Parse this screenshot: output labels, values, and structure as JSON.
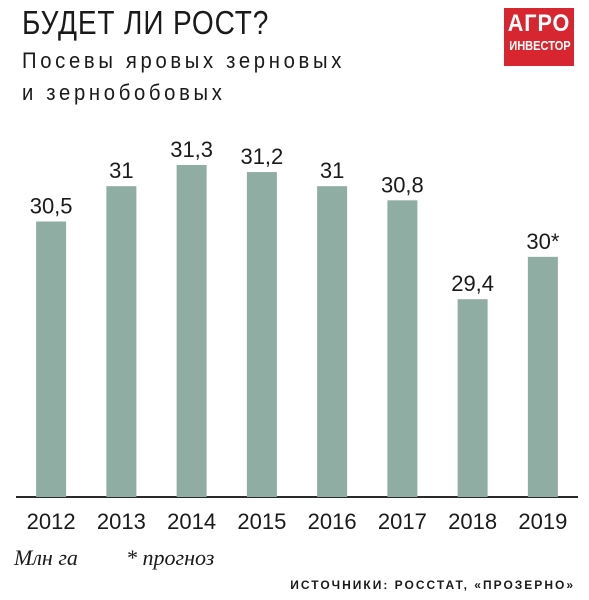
{
  "header": {
    "title": "БУДЕТ ЛИ РОСТ?",
    "subtitle_line1": "Посевы яровых зерновых",
    "subtitle_line2": "и зернобобовых"
  },
  "logo": {
    "line1": "АГРО",
    "line2": "ИНВЕСТОР",
    "color": "#d7262f"
  },
  "colors": {
    "bar": "#8fada3",
    "axis": "#2a2a2a"
  },
  "chart_data": {
    "type": "bar",
    "title": "БУДЕТ ЛИ РОСТ?",
    "subtitle": "Посевы яровых зерновых и зернобобовых",
    "ylabel": "Млн га",
    "categories": [
      "2012",
      "2013",
      "2014",
      "2015",
      "2016",
      "2017",
      "2018",
      "2019"
    ],
    "values": [
      30.5,
      31,
      31.3,
      31.2,
      31,
      30.8,
      29.4,
      30
    ],
    "data_labels": [
      "30,5",
      "31",
      "31,3",
      "31,2",
      "31",
      "30,8",
      "29,4",
      "30*"
    ],
    "ylim": [
      26.6,
      31.3
    ],
    "grid": false
  },
  "footer": {
    "unit": "Млн га",
    "note": "* прогноз",
    "source": "ИСТОЧНИКИ: РОССТАТ, «ПРОЗЕРНО»"
  }
}
